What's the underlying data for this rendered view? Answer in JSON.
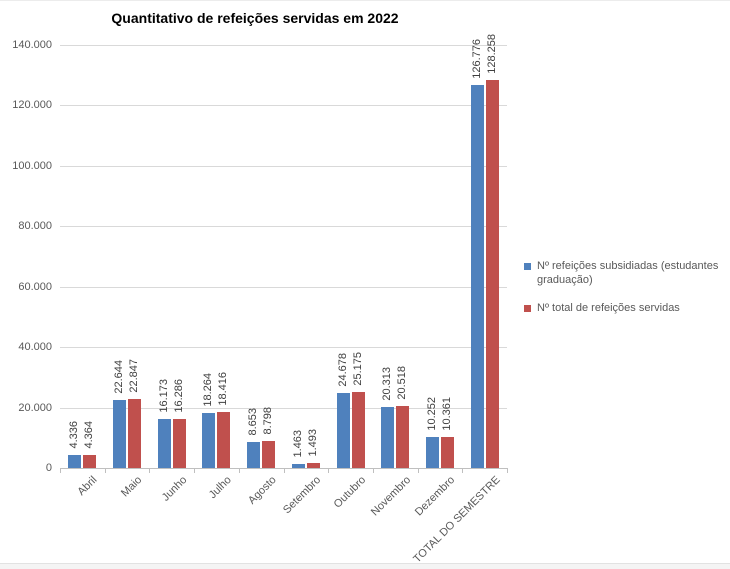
{
  "chart_data": {
    "type": "bar",
    "title": "Quantitativo de refeições servidas em 2022",
    "categories": [
      "Abril",
      "Maio",
      "Junho",
      "Julho",
      "Agosto",
      "Setembro",
      "Outubro",
      "Novembro",
      "Dezembro",
      "TOTAL DO SEMESTRE"
    ],
    "series": [
      {
        "name": "Nº refeições subsidiadas (estudantes graduação)",
        "color": "#4F81BD",
        "values": [
          4336,
          22644,
          16173,
          18264,
          8653,
          1463,
          24678,
          20313,
          10252,
          126776
        ],
        "labels": [
          "4.336",
          "22.644",
          "16.173",
          "18.264",
          "8.653",
          "1.463",
          "24.678",
          "20.313",
          "10.252",
          "126.776"
        ]
      },
      {
        "name": "Nº total de refeições servidas",
        "color": "#C0504D",
        "values": [
          4364,
          22847,
          16286,
          18416,
          8798,
          1493,
          25175,
          20518,
          10361,
          128258
        ],
        "labels": [
          "4.364",
          "22.847",
          "16.286",
          "18.416",
          "8.798",
          "1.493",
          "25.175",
          "20.518",
          "10.361",
          "128.258"
        ]
      }
    ],
    "ylim": [
      0,
      140000
    ],
    "ytick_step": 20000,
    "yticks": [
      {
        "value": 0,
        "label": "0"
      },
      {
        "value": 20000,
        "label": "20.000"
      },
      {
        "value": 40000,
        "label": "40.000"
      },
      {
        "value": 60000,
        "label": "60.000"
      },
      {
        "value": 80000,
        "label": "80.000"
      },
      {
        "value": 100000,
        "label": "100.000"
      },
      {
        "value": 120000,
        "label": "120.000"
      },
      {
        "value": 140000,
        "label": "140.000"
      }
    ],
    "grid": true,
    "legend_position": "right",
    "colors": {
      "gridline": "#D9D9D9",
      "axis": "#BFBFBF",
      "tick_label": "#595959",
      "data_label": "#3F3F3F",
      "title": "#000000"
    }
  }
}
